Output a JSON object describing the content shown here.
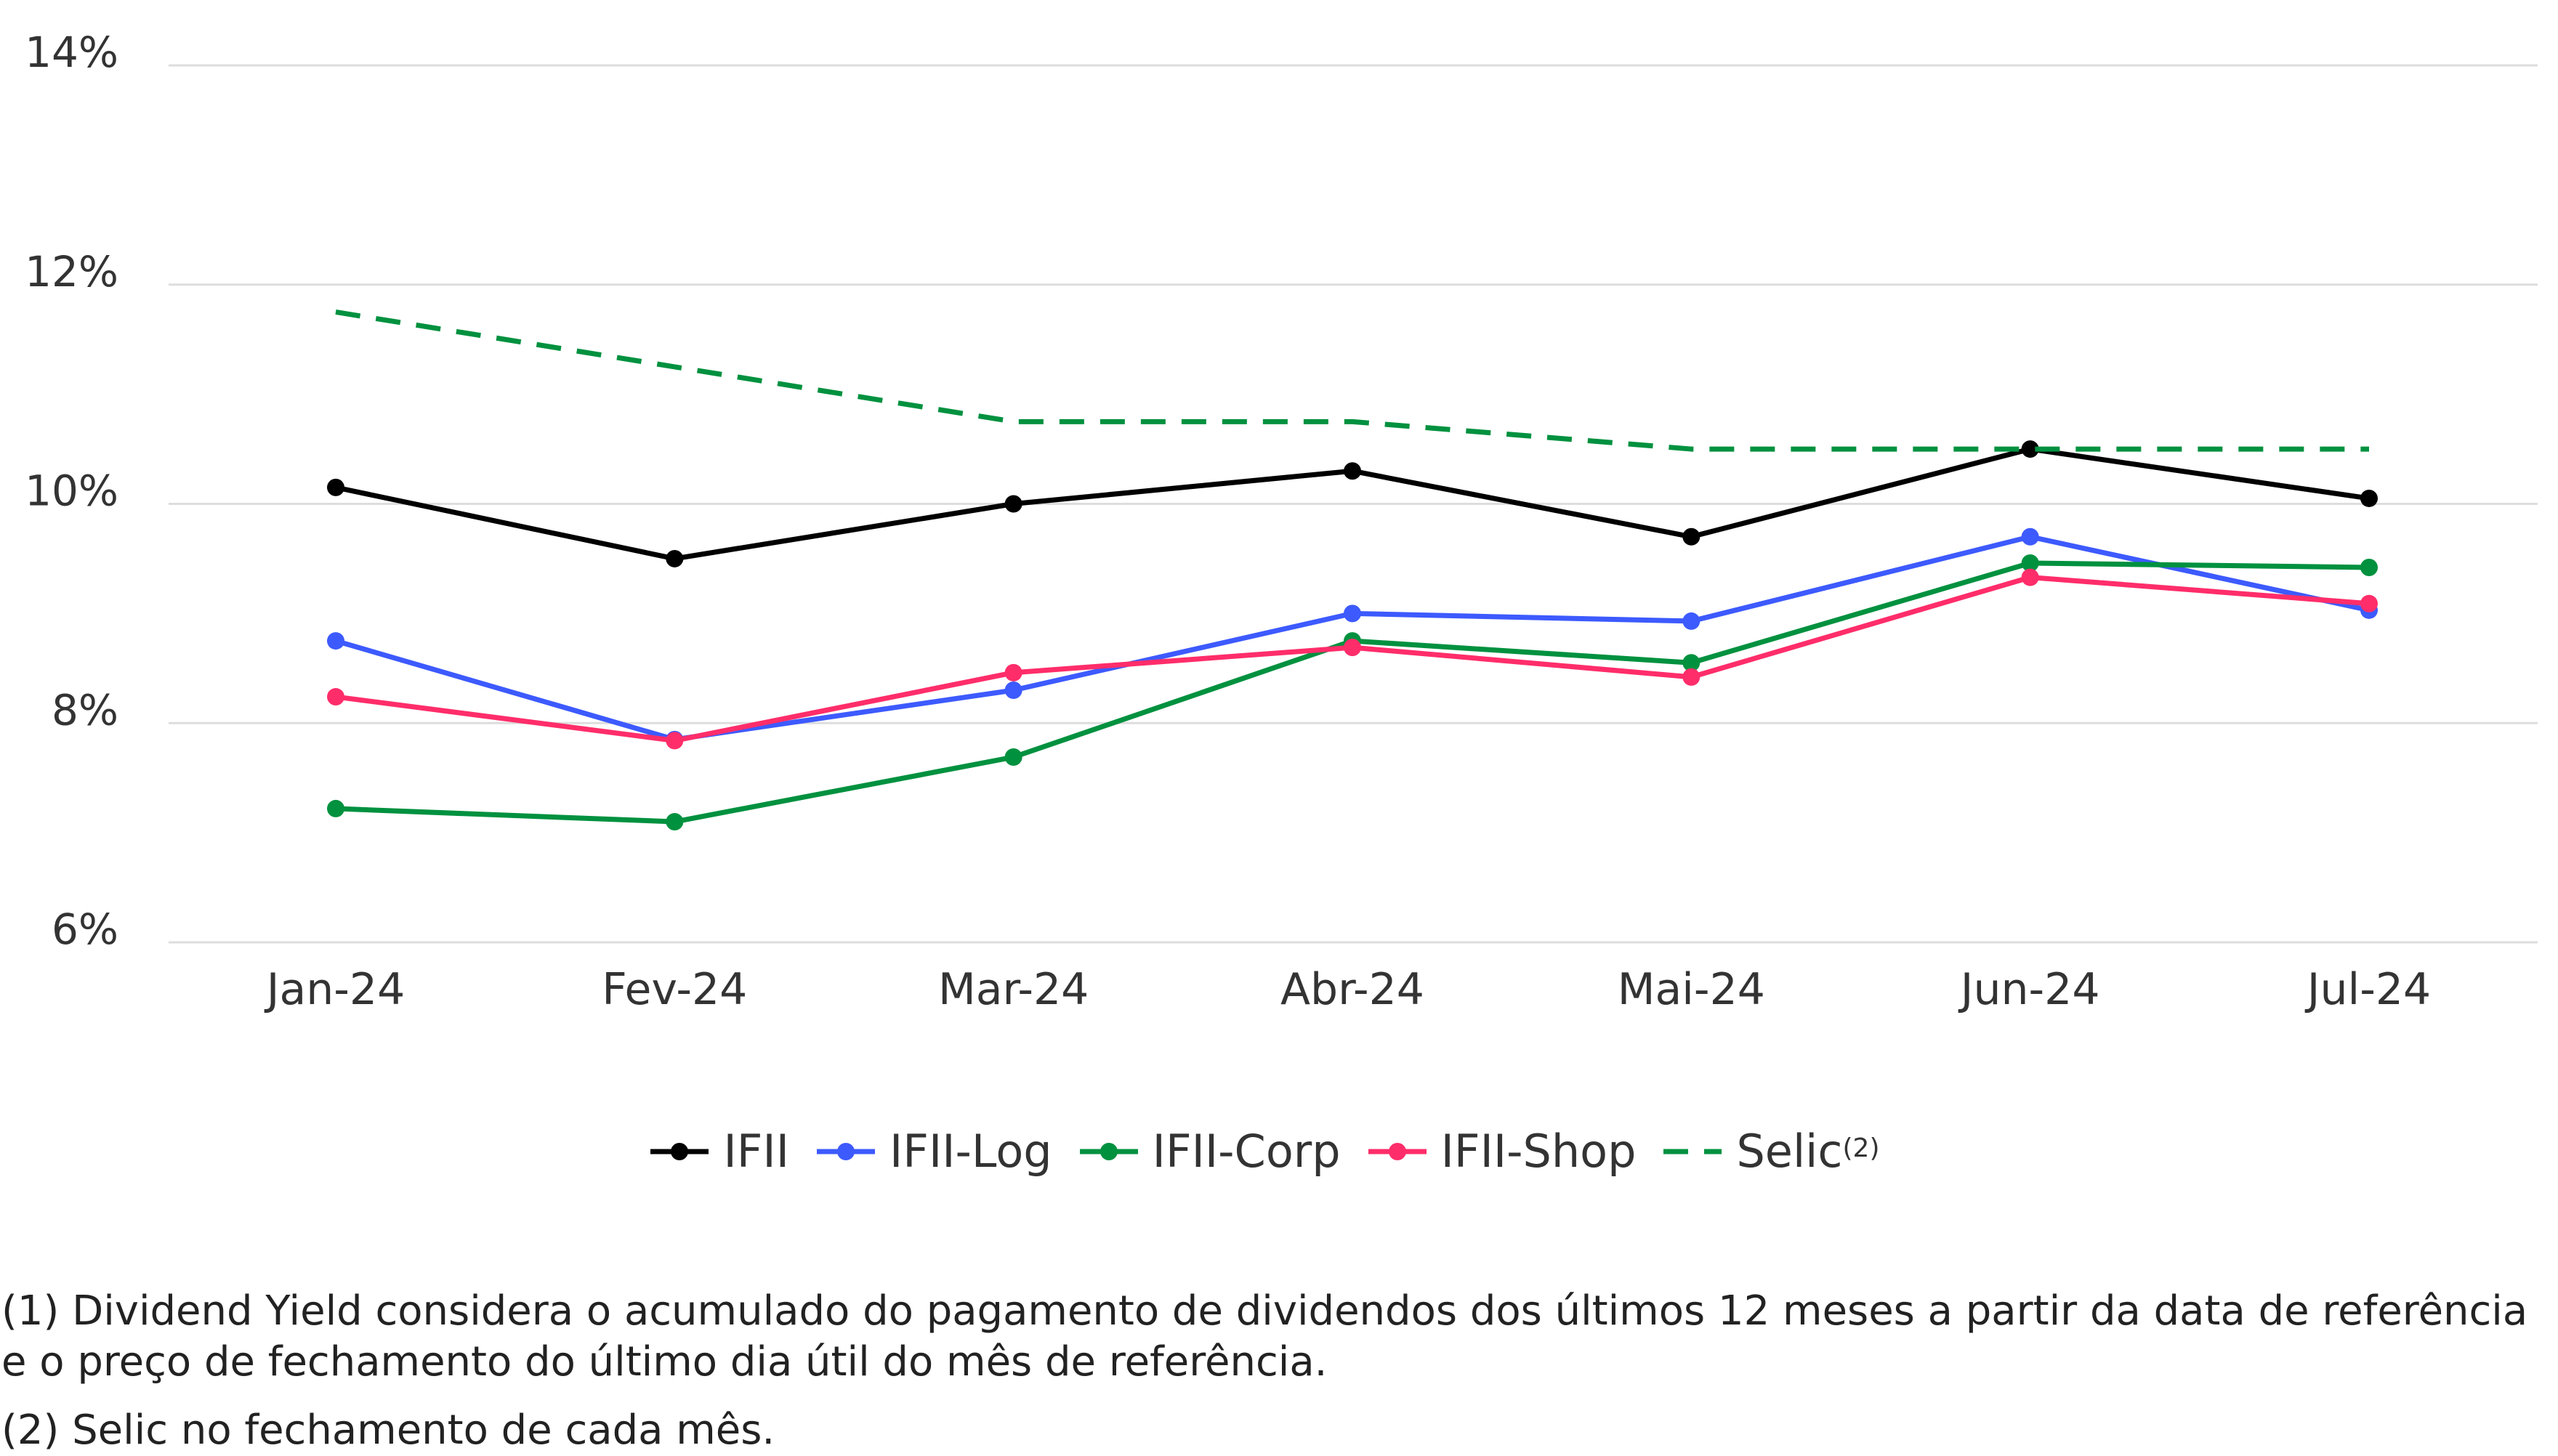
{
  "chart_data": {
    "type": "line",
    "categories": [
      "Jan-24",
      "Fev-24",
      "Mar-24",
      "Abr-24",
      "Mai-24",
      "Jun-24",
      "Jul-24"
    ],
    "ylim": [
      6,
      14
    ],
    "yticks": [
      6,
      8,
      10,
      12,
      14
    ],
    "ytick_labels": [
      "6%",
      "8%",
      "10%",
      "12%",
      "14%"
    ],
    "grid": true,
    "legend_position": "bottom",
    "series": [
      {
        "name": "IFII",
        "color": "#000000",
        "dashed": false,
        "markers": true,
        "values": [
          10.15,
          9.5,
          10.0,
          10.3,
          9.7,
          10.5,
          10.05
        ]
      },
      {
        "name": "IFII-Log",
        "color": "#3d5afe",
        "dashed": false,
        "markers": true,
        "values": [
          8.75,
          7.85,
          8.3,
          9.0,
          8.93,
          9.7,
          9.03
        ]
      },
      {
        "name": "IFII-Corp",
        "color": "#00913f",
        "dashed": false,
        "markers": true,
        "values": [
          7.22,
          7.1,
          7.69,
          8.75,
          8.55,
          9.46,
          9.42
        ]
      },
      {
        "name": "IFII-Shop",
        "color": "#ff2d6a",
        "dashed": false,
        "markers": true,
        "values": [
          8.24,
          7.84,
          8.46,
          8.69,
          8.42,
          9.33,
          9.09
        ]
      },
      {
        "name": "Selic",
        "superscript": "(2)",
        "color": "#00913f",
        "dashed": true,
        "markers": false,
        "values": [
          11.75,
          11.25,
          10.75,
          10.75,
          10.5,
          10.5,
          10.5
        ]
      }
    ]
  },
  "footnotes": [
    "(1) Dividend Yield considera o acumulado do pagamento de dividendos dos últimos 12 meses a partir da data de referência e o preço de fechamento do último dia útil do mês de referência.",
    "(2) Selic no fechamento de cada mês."
  ]
}
